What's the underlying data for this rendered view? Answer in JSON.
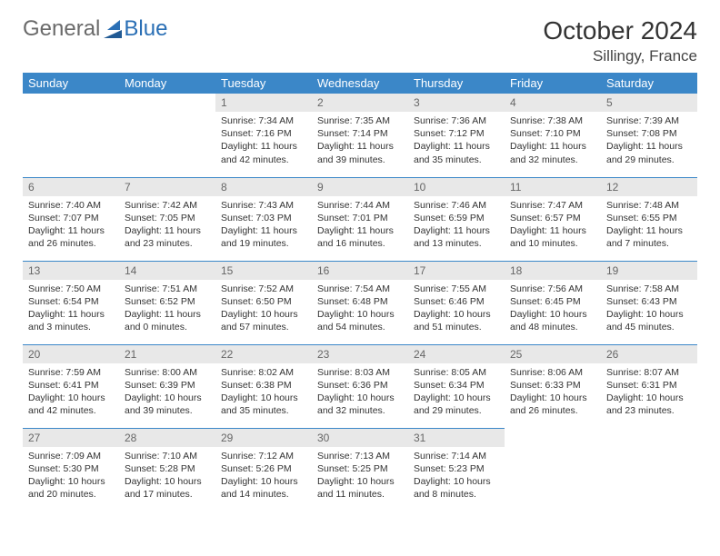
{
  "logo": {
    "part1": "General",
    "part2": "Blue"
  },
  "title": {
    "month": "October 2024",
    "location": "Sillingy, France"
  },
  "headers": [
    "Sunday",
    "Monday",
    "Tuesday",
    "Wednesday",
    "Thursday",
    "Friday",
    "Saturday"
  ],
  "colors": {
    "header_bg": "#3b87c8",
    "header_fg": "#ffffff",
    "daynum_bg": "#e8e8e8",
    "border": "#3b87c8",
    "logo_gray": "#6a6a6a",
    "logo_blue": "#2a6fb5"
  },
  "weeks": [
    [
      null,
      null,
      {
        "n": "1",
        "sr": "7:34 AM",
        "ss": "7:16 PM",
        "dl": "11 hours and 42 minutes."
      },
      {
        "n": "2",
        "sr": "7:35 AM",
        "ss": "7:14 PM",
        "dl": "11 hours and 39 minutes."
      },
      {
        "n": "3",
        "sr": "7:36 AM",
        "ss": "7:12 PM",
        "dl": "11 hours and 35 minutes."
      },
      {
        "n": "4",
        "sr": "7:38 AM",
        "ss": "7:10 PM",
        "dl": "11 hours and 32 minutes."
      },
      {
        "n": "5",
        "sr": "7:39 AM",
        "ss": "7:08 PM",
        "dl": "11 hours and 29 minutes."
      }
    ],
    [
      {
        "n": "6",
        "sr": "7:40 AM",
        "ss": "7:07 PM",
        "dl": "11 hours and 26 minutes."
      },
      {
        "n": "7",
        "sr": "7:42 AM",
        "ss": "7:05 PM",
        "dl": "11 hours and 23 minutes."
      },
      {
        "n": "8",
        "sr": "7:43 AM",
        "ss": "7:03 PM",
        "dl": "11 hours and 19 minutes."
      },
      {
        "n": "9",
        "sr": "7:44 AM",
        "ss": "7:01 PM",
        "dl": "11 hours and 16 minutes."
      },
      {
        "n": "10",
        "sr": "7:46 AM",
        "ss": "6:59 PM",
        "dl": "11 hours and 13 minutes."
      },
      {
        "n": "11",
        "sr": "7:47 AM",
        "ss": "6:57 PM",
        "dl": "11 hours and 10 minutes."
      },
      {
        "n": "12",
        "sr": "7:48 AM",
        "ss": "6:55 PM",
        "dl": "11 hours and 7 minutes."
      }
    ],
    [
      {
        "n": "13",
        "sr": "7:50 AM",
        "ss": "6:54 PM",
        "dl": "11 hours and 3 minutes."
      },
      {
        "n": "14",
        "sr": "7:51 AM",
        "ss": "6:52 PM",
        "dl": "11 hours and 0 minutes."
      },
      {
        "n": "15",
        "sr": "7:52 AM",
        "ss": "6:50 PM",
        "dl": "10 hours and 57 minutes."
      },
      {
        "n": "16",
        "sr": "7:54 AM",
        "ss": "6:48 PM",
        "dl": "10 hours and 54 minutes."
      },
      {
        "n": "17",
        "sr": "7:55 AM",
        "ss": "6:46 PM",
        "dl": "10 hours and 51 minutes."
      },
      {
        "n": "18",
        "sr": "7:56 AM",
        "ss": "6:45 PM",
        "dl": "10 hours and 48 minutes."
      },
      {
        "n": "19",
        "sr": "7:58 AM",
        "ss": "6:43 PM",
        "dl": "10 hours and 45 minutes."
      }
    ],
    [
      {
        "n": "20",
        "sr": "7:59 AM",
        "ss": "6:41 PM",
        "dl": "10 hours and 42 minutes."
      },
      {
        "n": "21",
        "sr": "8:00 AM",
        "ss": "6:39 PM",
        "dl": "10 hours and 39 minutes."
      },
      {
        "n": "22",
        "sr": "8:02 AM",
        "ss": "6:38 PM",
        "dl": "10 hours and 35 minutes."
      },
      {
        "n": "23",
        "sr": "8:03 AM",
        "ss": "6:36 PM",
        "dl": "10 hours and 32 minutes."
      },
      {
        "n": "24",
        "sr": "8:05 AM",
        "ss": "6:34 PM",
        "dl": "10 hours and 29 minutes."
      },
      {
        "n": "25",
        "sr": "8:06 AM",
        "ss": "6:33 PM",
        "dl": "10 hours and 26 minutes."
      },
      {
        "n": "26",
        "sr": "8:07 AM",
        "ss": "6:31 PM",
        "dl": "10 hours and 23 minutes."
      }
    ],
    [
      {
        "n": "27",
        "sr": "7:09 AM",
        "ss": "5:30 PM",
        "dl": "10 hours and 20 minutes."
      },
      {
        "n": "28",
        "sr": "7:10 AM",
        "ss": "5:28 PM",
        "dl": "10 hours and 17 minutes."
      },
      {
        "n": "29",
        "sr": "7:12 AM",
        "ss": "5:26 PM",
        "dl": "10 hours and 14 minutes."
      },
      {
        "n": "30",
        "sr": "7:13 AM",
        "ss": "5:25 PM",
        "dl": "10 hours and 11 minutes."
      },
      {
        "n": "31",
        "sr": "7:14 AM",
        "ss": "5:23 PM",
        "dl": "10 hours and 8 minutes."
      },
      null,
      null
    ]
  ]
}
